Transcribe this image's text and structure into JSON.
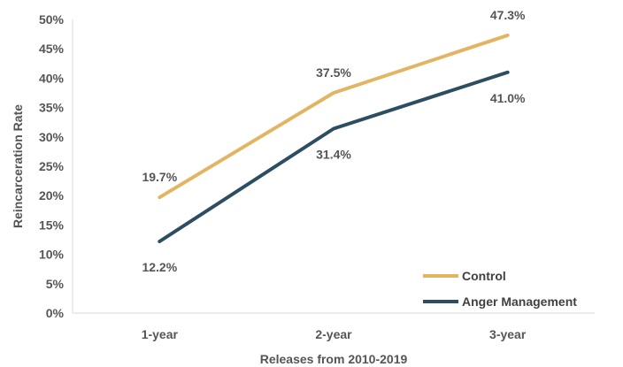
{
  "chart_data": {
    "type": "line",
    "categories": [
      "1-year",
      "2-year",
      "3-year"
    ],
    "series": [
      {
        "name": "Control",
        "values": [
          19.7,
          37.5,
          47.3
        ],
        "labels": [
          "19.7%",
          "37.5%",
          "47.3%"
        ],
        "color": "#E2B563"
      },
      {
        "name": "Anger Management",
        "values": [
          12.2,
          31.4,
          41.0
        ],
        "labels": [
          "12.2%",
          "31.4%",
          "41.0%"
        ],
        "color": "#2D4E62"
      }
    ],
    "xlabel": "Releases from 2010-2019",
    "ylabel": "Reincarceration Rate",
    "ylim": [
      0,
      50
    ],
    "yticks": [
      "0%",
      "5%",
      "10%",
      "15%",
      "20%",
      "25%",
      "30%",
      "35%",
      "40%",
      "45%",
      "50%"
    ],
    "grid": false,
    "legend": "bottom-right"
  }
}
